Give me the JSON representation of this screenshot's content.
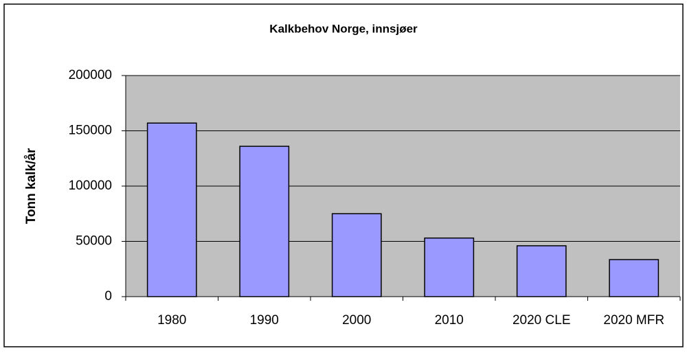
{
  "chart_data": {
    "type": "bar",
    "title": "Kalkbehov Norge, innsjøer",
    "y_label": "Tonn kalk/år",
    "categories": [
      "1980",
      "1990",
      "2000",
      "2010",
      "2020 CLE",
      "2020 MFR"
    ],
    "values": [
      157000,
      136000,
      75000,
      53000,
      46000,
      33500
    ],
    "color": "#9999ff",
    "ylim": [
      0,
      200000
    ],
    "yticks": [
      0,
      50000,
      100000,
      150000,
      200000
    ],
    "grid": true
  }
}
